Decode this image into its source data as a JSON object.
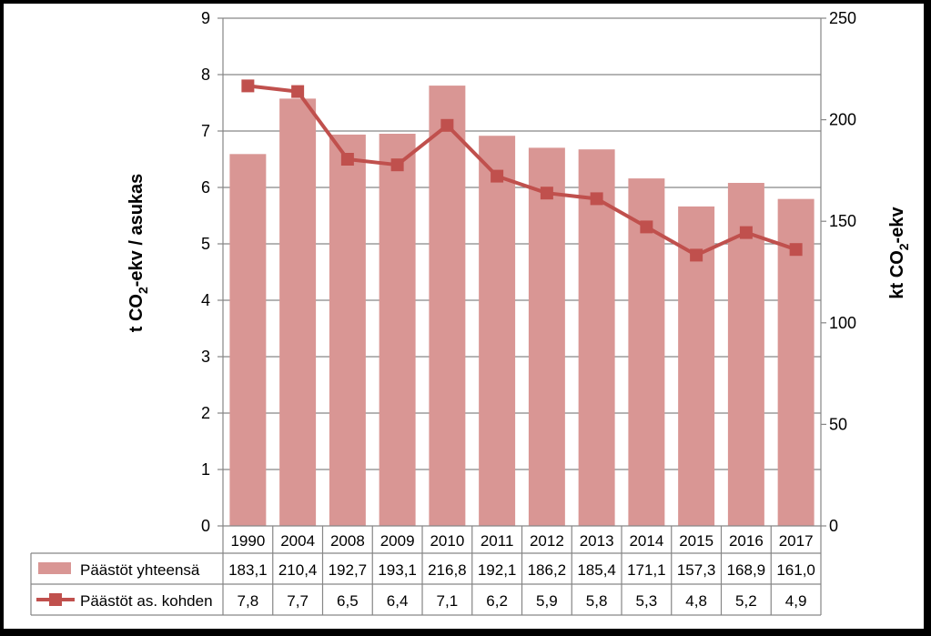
{
  "chart_data": {
    "type": "bar",
    "categories": [
      "1990",
      "2004",
      "2008",
      "2009",
      "2010",
      "2011",
      "2012",
      "2013",
      "2014",
      "2015",
      "2016",
      "2017"
    ],
    "series": [
      {
        "name": "Päästöt yhteensä",
        "chart_type": "bar",
        "axis": "right",
        "values": [
          183.1,
          210.4,
          192.7,
          193.1,
          216.8,
          192.1,
          186.2,
          185.4,
          171.1,
          157.3,
          168.9,
          161.0
        ],
        "labels": [
          "183,1",
          "210,4",
          "192,7",
          "193,1",
          "216,8",
          "192,1",
          "186,2",
          "185,4",
          "171,1",
          "157,3",
          "168,9",
          "161,0"
        ],
        "color": "#D99694"
      },
      {
        "name": "Päästöt as. kohden",
        "chart_type": "line",
        "axis": "left",
        "values": [
          7.8,
          7.7,
          6.5,
          6.4,
          7.1,
          6.2,
          5.9,
          5.8,
          5.3,
          4.8,
          5.2,
          4.9
        ],
        "labels": [
          "7,8",
          "7,7",
          "6,5",
          "6,4",
          "7,1",
          "6,2",
          "5,9",
          "5,8",
          "5,3",
          "4,8",
          "5,2",
          "4,9"
        ],
        "color": "#C0504D"
      }
    ],
    "ylabel_left": {
      "main": "t CO",
      "sub": "2",
      "rest": "-ekv / asukas"
    },
    "ylabel_right": {
      "main": "kt CO",
      "sub": "2",
      "rest": "-ekv"
    },
    "ylim_left": [
      0,
      9
    ],
    "yticks_left": [
      0,
      1,
      2,
      3,
      4,
      5,
      6,
      7,
      8,
      9
    ],
    "ylim_right": [
      0,
      250
    ],
    "yticks_right": [
      0,
      50,
      100,
      150,
      200,
      250
    ],
    "grid": true,
    "legend": "data-table below plot"
  }
}
